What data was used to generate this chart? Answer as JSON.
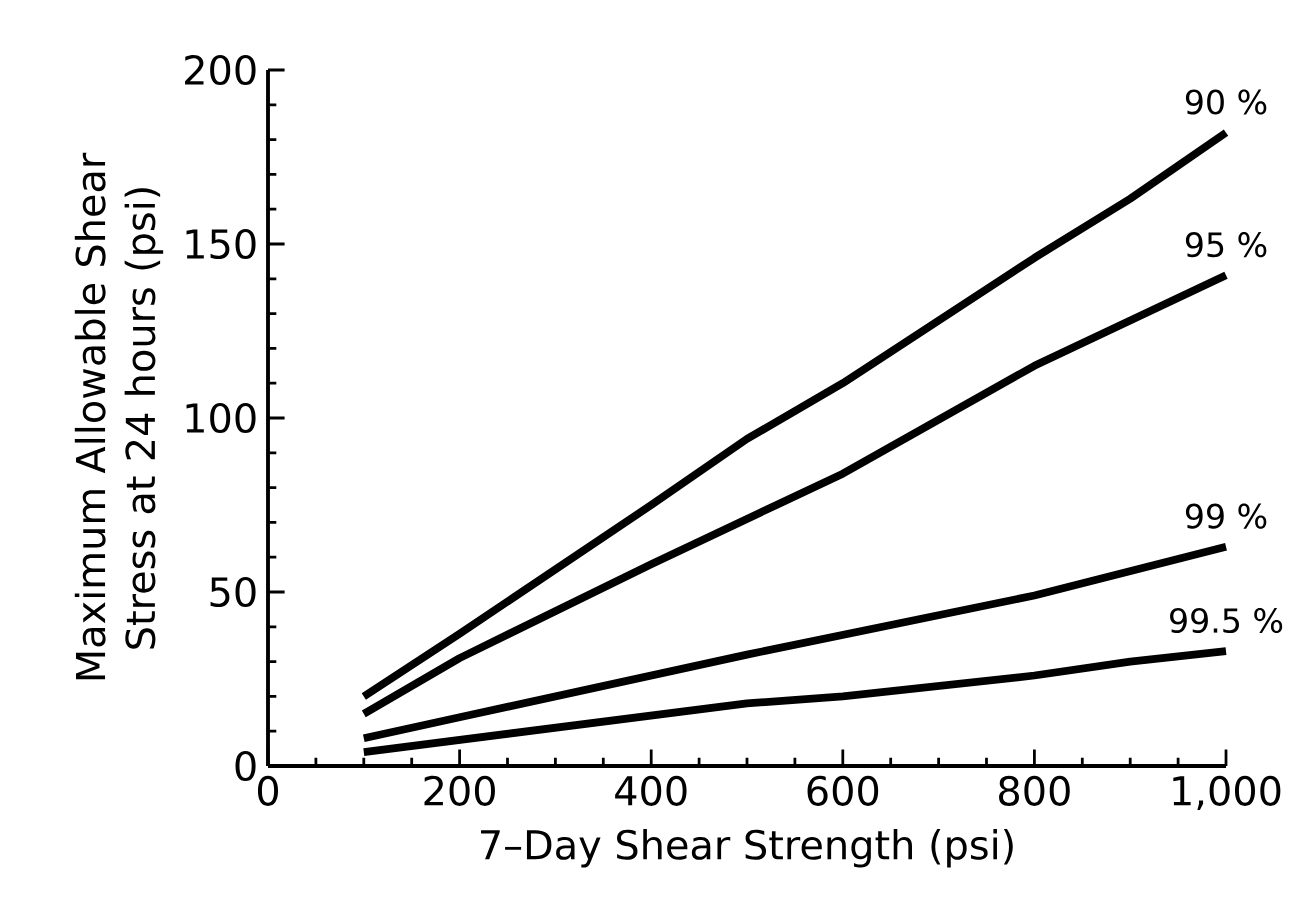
{
  "chart_data": {
    "type": "line",
    "xlabel": "7–Day Shear Strength (psi)",
    "ylabel": "Maximum Allowable Shear Stress at 24 hours (psi)",
    "xlim": [
      0,
      1000
    ],
    "ylim": [
      0,
      200
    ],
    "xticks": [
      0,
      200,
      400,
      600,
      800,
      {
        "value": 1000,
        "label": "1,000"
      }
    ],
    "yticks": [
      0,
      50,
      100,
      150,
      200
    ],
    "grid": false,
    "legend": false,
    "marker": "none",
    "line_style": "solid",
    "series": [
      {
        "name": "90 %",
        "color": "#000000",
        "x": [
          100,
          200,
          400,
          500,
          600,
          800,
          900,
          1000
        ],
        "values": [
          20,
          38,
          75,
          94,
          110,
          146,
          163,
          182
        ]
      },
      {
        "name": "95 %",
        "color": "#000000",
        "x": [
          100,
          200,
          400,
          600,
          800,
          1000
        ],
        "values": [
          15,
          31,
          58,
          84,
          115,
          141
        ]
      },
      {
        "name": "99 %",
        "color": "#000000",
        "x": [
          100,
          200,
          300,
          400,
          500,
          800,
          1000
        ],
        "values": [
          8,
          14,
          20,
          26,
          32,
          49,
          63
        ]
      },
      {
        "name": "99.5 %",
        "color": "#000000",
        "x": [
          100,
          300,
          500,
          600,
          800,
          900,
          1000
        ],
        "values": [
          4,
          11,
          18,
          20,
          26,
          30,
          33
        ]
      }
    ]
  }
}
